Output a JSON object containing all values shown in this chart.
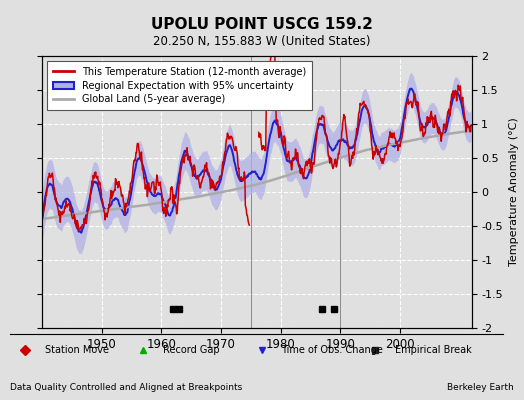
{
  "title": "UPOLU POINT USCG 159.2",
  "subtitle": "20.250 N, 155.883 W (United States)",
  "ylabel": "Temperature Anomaly (°C)",
  "xlabel_note": "Data Quality Controlled and Aligned at Breakpoints",
  "credit": "Berkeley Earth",
  "xlim": [
    1940,
    2012
  ],
  "ylim": [
    -2.0,
    2.0
  ],
  "yticks": [
    -2.0,
    -1.5,
    -1.0,
    -0.5,
    0.0,
    0.5,
    1.0,
    1.5,
    2.0
  ],
  "xticks": [
    1950,
    1960,
    1970,
    1980,
    1990,
    2000
  ],
  "bg_color": "#e0e0e0",
  "plot_bg_color": "#e0e0e0",
  "grid_color": "white",
  "empirical_breaks": [
    1962,
    1963,
    1987,
    1989
  ],
  "vertical_lines": [
    1975,
    1990
  ],
  "legend_labels": [
    "This Temperature Station (12-month average)",
    "Regional Expectation with 95% uncertainty",
    "Global Land (5-year average)"
  ],
  "station_line_color": "#cc0000",
  "regional_line_color": "#2222cc",
  "regional_fill_color": "#b0b0e8",
  "global_line_color": "#aaaaaa",
  "bottom_legend_items": [
    {
      "marker": "D",
      "color": "#cc0000",
      "label": "Station Move"
    },
    {
      "marker": "^",
      "color": "#00aa00",
      "label": "Record Gap"
    },
    {
      "marker": "v",
      "color": "#2222cc",
      "label": "Time of Obs. Change"
    },
    {
      "marker": "s",
      "color": "#222222",
      "label": "Empirical Break"
    }
  ]
}
